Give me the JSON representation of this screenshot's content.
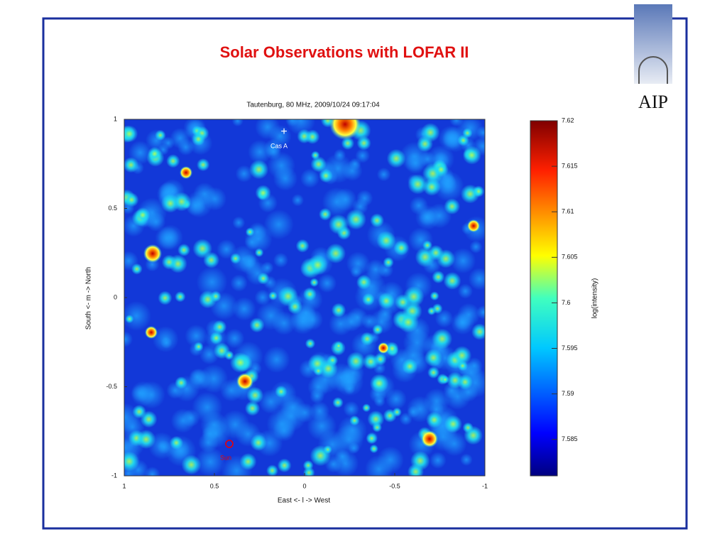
{
  "slide": {
    "title": "Solar Observations with LOFAR II",
    "logo": "AIP"
  },
  "chart_data": {
    "type": "heatmap",
    "title": "Tautenburg, 80 MHz, 2009/10/24 09:17:04",
    "x_label": "East <- l -> West",
    "y_label": "South <- m -> North",
    "xlim": [
      1,
      -1
    ],
    "xticks": [
      1,
      0.5,
      0,
      -0.5,
      -1
    ],
    "ylim": [
      -1,
      1
    ],
    "yticks": [
      1,
      0.5,
      0,
      -0.5,
      -1
    ],
    "colorbar_label": "log(intensity)",
    "clim": [
      7.581,
      7.62
    ],
    "cticks": [
      7.62,
      7.615,
      7.61,
      7.605,
      7.6,
      7.595,
      7.59,
      7.585
    ],
    "annotations": [
      "Cas A",
      "Sun"
    ]
  }
}
